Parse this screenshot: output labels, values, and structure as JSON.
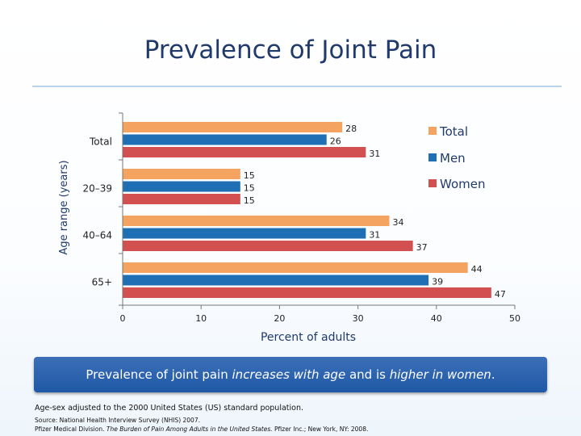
{
  "slide": {
    "title": "Prevalence of Joint Pain"
  },
  "banner": {
    "part1": "Prevalence of joint pain ",
    "part2": "increases with age",
    "part3": " and is ",
    "part4": "higher in women",
    "part5": "."
  },
  "notes": {
    "adjustment": "Age-sex adjusted to the 2000 United States (US) standard population.",
    "source": "Source: National Health Interview Survey (NHIS) 2007.",
    "citation_prefix": "Pfizer Medical Division. ",
    "citation_title": "The Burden of Pain Among Adults in the United States.",
    "citation_suffix": " Pfizer Inc.; New York, NY: 2008."
  },
  "chart_data": {
    "type": "bar",
    "orientation": "horizontal",
    "categories": [
      "Total",
      "20–39",
      "40–64",
      "65+"
    ],
    "series": [
      {
        "name": "Total",
        "color": "#f4a460",
        "values": [
          28,
          15,
          34,
          44
        ]
      },
      {
        "name": "Men",
        "color": "#1f6fb5",
        "values": [
          26,
          15,
          31,
          39
        ]
      },
      {
        "name": "Women",
        "color": "#d2504f",
        "values": [
          31,
          15,
          37,
          47
        ]
      }
    ],
    "xlabel": "Percent of adults",
    "ylabel": "Age range (years)",
    "xlim": [
      0,
      50
    ],
    "xticks": [
      0,
      10,
      20,
      30,
      40,
      50
    ],
    "grid": false,
    "legend_position": "top-right"
  }
}
